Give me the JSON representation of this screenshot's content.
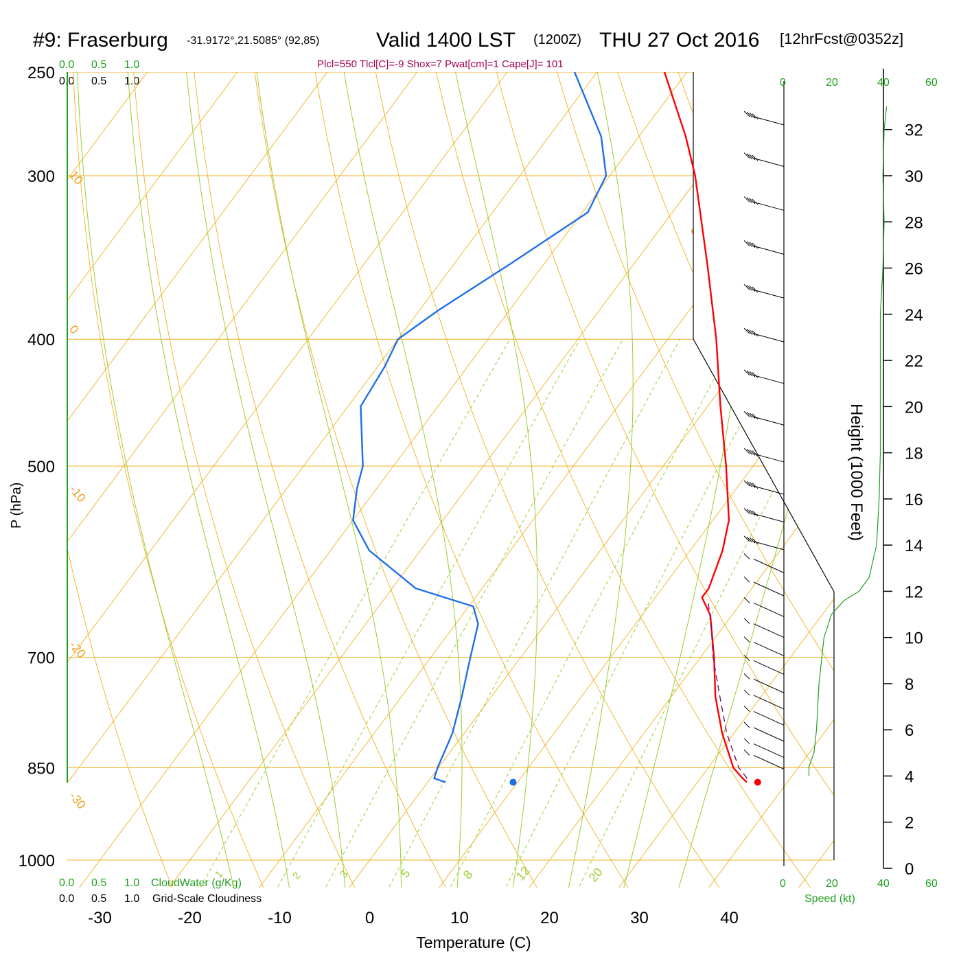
{
  "title": {
    "station": "#9: Fraserburg",
    "coords": "-31.9172°,21.5085° (92,85)",
    "valid": "Valid 1400 LST",
    "zulu": "(1200Z)",
    "date": "THU 27 Oct 2016",
    "forecast": "[12hrFcst@0352z]"
  },
  "params": "Plcl=550 Tlcl[C]=-9 Shox=7 Pwat[cm]=1 Cape[J]= 101",
  "cloud_scale": {
    "green_ticks": [
      "0.0",
      "0.5",
      "1.0"
    ],
    "black_ticks": [
      "0.0",
      "0.5",
      "1.0"
    ],
    "bottom_green_label": "CloudWater (g/Kg)",
    "bottom_black_label": "Grid-Scale Cloudiness"
  },
  "speed_axis": {
    "ticks": [
      "0",
      "20",
      "40",
      "60"
    ],
    "label": "Speed (kt)"
  },
  "height_axis": {
    "label": "Height (1000 Feet)",
    "ticks": [
      "0",
      "2",
      "4",
      "6",
      "8",
      "10",
      "12",
      "14",
      "16",
      "18",
      "20",
      "22",
      "24",
      "26",
      "28",
      "30",
      "32"
    ]
  },
  "colors": {
    "temperature": "#ff0000",
    "dewpoint": "#1e6fe8",
    "parcel": "#6b1070",
    "isotherm": "#f0b020",
    "adiabat": "#9acd32",
    "mixing_ratio": "#9acd32",
    "wind_speed": "#1ea01e"
  },
  "chart_data": {
    "type": "skew-t",
    "xlabel": "Temperature (C)",
    "ylabel": "P (hPa)",
    "x_ticks": [
      "-30",
      "-20",
      "-10",
      "0",
      "10",
      "20",
      "30",
      "40"
    ],
    "pressure_ticks": [
      "250",
      "300",
      "400",
      "500",
      "700",
      "850",
      "1000"
    ],
    "temperature_range": [
      -34,
      36
    ],
    "pressure_range": [
      250,
      1000
    ],
    "isotherm_labels": [
      "10",
      "0",
      "-10",
      "-20",
      "-30",
      "0",
      "10",
      "20",
      "30"
    ],
    "mixing_ratio_labels": [
      "1",
      "2",
      "3",
      "5",
      "8",
      "12",
      "20"
    ],
    "series": [
      {
        "name": "temperature",
        "points": [
          {
            "p": 872,
            "t": 35.5
          },
          {
            "p": 866,
            "t": 34.7
          },
          {
            "p": 850,
            "t": 32.8
          },
          {
            "p": 800,
            "t": 28.7
          },
          {
            "p": 750,
            "t": 24.9
          },
          {
            "p": 700,
            "t": 21.5
          },
          {
            "p": 650,
            "t": 17.6
          },
          {
            "p": 630,
            "t": 15.2
          },
          {
            "p": 620,
            "t": 15.2
          },
          {
            "p": 580,
            "t": 13.6
          },
          {
            "p": 550,
            "t": 11.8
          },
          {
            "p": 500,
            "t": 7.0
          },
          {
            "p": 450,
            "t": 1.4
          },
          {
            "p": 400,
            "t": -4.6
          },
          {
            "p": 350,
            "t": -11.9
          },
          {
            "p": 300,
            "t": -20.5
          },
          {
            "p": 280,
            "t": -24.8
          },
          {
            "p": 250,
            "t": -32.5
          }
        ]
      },
      {
        "name": "dewpoint",
        "points": [
          {
            "p": 872,
            "t": 2.0
          },
          {
            "p": 866,
            "t": 0.4
          },
          {
            "p": 850,
            "t": -0.1
          },
          {
            "p": 800,
            "t": -1.3
          },
          {
            "p": 750,
            "t": -3.3
          },
          {
            "p": 700,
            "t": -5.6
          },
          {
            "p": 660,
            "t": -7.5
          },
          {
            "p": 640,
            "t": -9.5
          },
          {
            "p": 620,
            "t": -17.4
          },
          {
            "p": 580,
            "t": -25.7
          },
          {
            "p": 550,
            "t": -30.0
          },
          {
            "p": 520,
            "t": -32.2
          },
          {
            "p": 500,
            "t": -33.4
          },
          {
            "p": 450,
            "t": -38.6
          },
          {
            "p": 420,
            "t": -39.2
          },
          {
            "p": 400,
            "t": -40.0
          },
          {
            "p": 380,
            "t": -37.9
          },
          {
            "p": 350,
            "t": -33.7
          },
          {
            "p": 320,
            "t": -29.4
          },
          {
            "p": 300,
            "t": -30.4
          },
          {
            "p": 280,
            "t": -34.2
          },
          {
            "p": 250,
            "t": -42.5
          }
        ]
      },
      {
        "name": "parcel",
        "points": [
          {
            "p": 866,
            "t": 35.2
          },
          {
            "p": 850,
            "t": 33.4
          },
          {
            "p": 800,
            "t": 29.2
          },
          {
            "p": 750,
            "t": 25.4
          },
          {
            "p": 700,
            "t": 21.4
          },
          {
            "p": 660,
            "t": 18.4
          },
          {
            "p": 632,
            "t": 16.0
          }
        ]
      }
    ],
    "surface_markers": [
      {
        "name": "surface temperature",
        "p": 872,
        "t": 36.7
      },
      {
        "name": "surface dewpoint",
        "p": 872,
        "t": 9.5
      }
    ],
    "wind_profile": [
      {
        "height_kft": 4.0,
        "speed_kt": 10
      },
      {
        "height_kft": 4.4,
        "speed_kt": 10
      },
      {
        "height_kft": 5.0,
        "speed_kt": 12
      },
      {
        "height_kft": 6.0,
        "speed_kt": 13
      },
      {
        "height_kft": 8.0,
        "speed_kt": 14
      },
      {
        "height_kft": 10.0,
        "speed_kt": 16
      },
      {
        "height_kft": 11.0,
        "speed_kt": 19
      },
      {
        "height_kft": 11.6,
        "speed_kt": 24
      },
      {
        "height_kft": 12.0,
        "speed_kt": 30
      },
      {
        "height_kft": 12.6,
        "speed_kt": 34
      },
      {
        "height_kft": 14.0,
        "speed_kt": 37
      },
      {
        "height_kft": 16.0,
        "speed_kt": 38
      },
      {
        "height_kft": 18.0,
        "speed_kt": 38.5
      },
      {
        "height_kft": 20.0,
        "speed_kt": 38.5
      },
      {
        "height_kft": 24.0,
        "speed_kt": 38.5
      },
      {
        "height_kft": 26.0,
        "speed_kt": 39.5
      },
      {
        "height_kft": 28.0,
        "speed_kt": 40
      },
      {
        "height_kft": 30.0,
        "speed_kt": 39.5
      },
      {
        "height_kft": 32.0,
        "speed_kt": 40
      },
      {
        "height_kft": 33.0,
        "speed_kt": 41
      }
    ],
    "wind_barbs_kft": [
      32.2,
      30.4,
      28.5,
      26.6,
      24.7,
      22.8,
      21,
      19.2,
      17.6,
      16.2,
      15,
      13.8,
      12.8,
      11.8,
      10.9,
      10,
      9.2,
      8.4,
      7.6,
      6.9,
      6.2,
      5.5,
      4.8,
      4.3
    ]
  }
}
